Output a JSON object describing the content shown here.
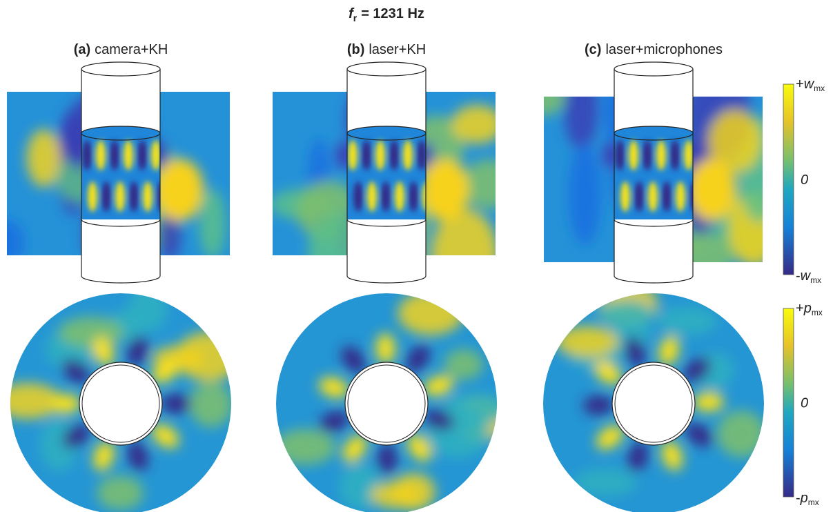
{
  "title": {
    "symbol": "f",
    "subscript": "r",
    "value": "= 1231 Hz"
  },
  "panels": [
    {
      "label": "(a)",
      "caption": "camera+KH"
    },
    {
      "label": "(b)",
      "caption": "laser+KH"
    },
    {
      "label": "(c)",
      "caption": "laser+microphones"
    }
  ],
  "colorbars": [
    {
      "top": {
        "sign": "+",
        "symbol": "w",
        "subscript": "mx"
      },
      "middle": "0",
      "bottom": {
        "sign": "-",
        "symbol": "w",
        "subscript": "mx"
      }
    },
    {
      "top": {
        "sign": "+",
        "symbol": "p",
        "subscript": "mx"
      },
      "middle": "0",
      "bottom": {
        "sign": "-",
        "symbol": "p",
        "subscript": "mx"
      }
    }
  ]
}
